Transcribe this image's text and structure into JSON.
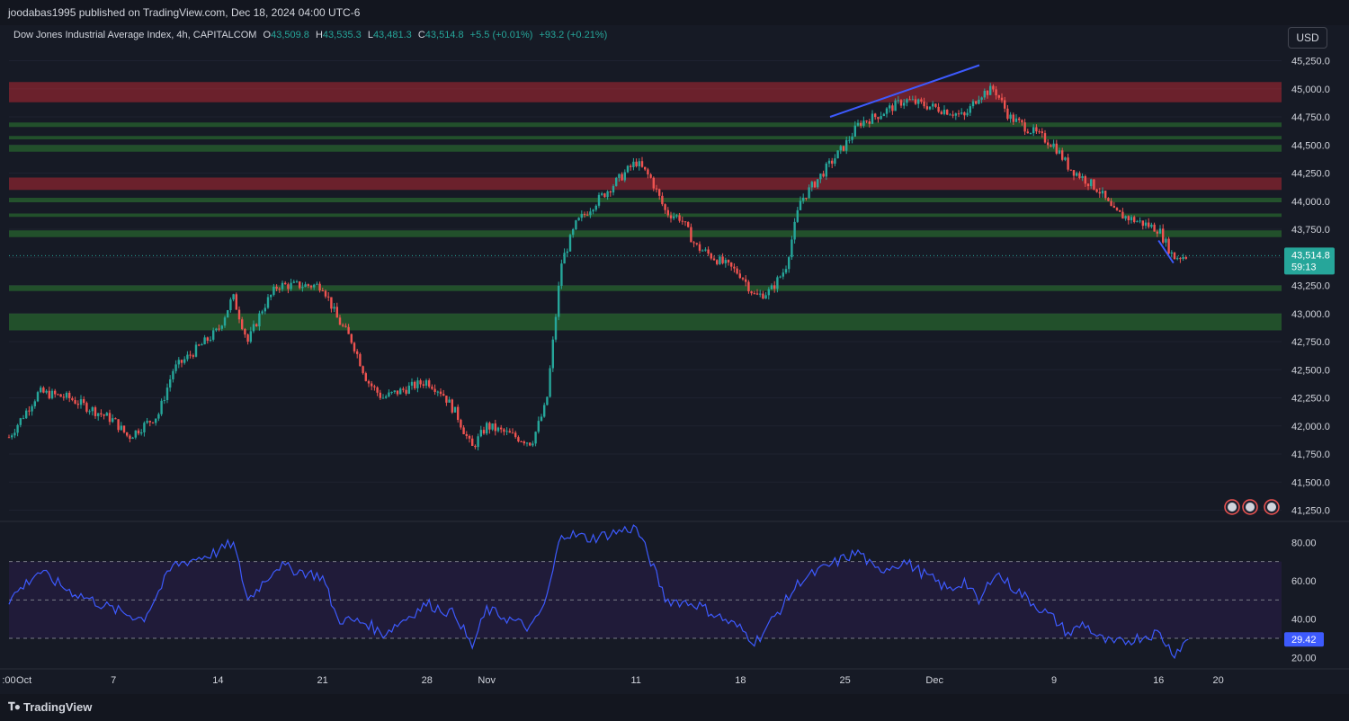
{
  "header": {
    "publisher_line": "joodabas1995 published on TradingView.com, Dec 18, 2024 04:00 UTC-6"
  },
  "legend": {
    "symbol": "Dow Jones Industrial Average Index, 4h, CAPITALCOM",
    "open_label": "O",
    "open": "43,509.8",
    "high_label": "H",
    "high": "43,535.3",
    "low_label": "L",
    "low": "43,481.3",
    "close_label": "C",
    "close": "43,514.8",
    "change": "+5.5 (+0.01%)",
    "change2": "+93.2 (+0.21%)"
  },
  "currency_button": "USD",
  "price_tag": {
    "value": "43,514.8",
    "countdown": "59:13"
  },
  "rsi_tag": "29.42",
  "footer": {
    "brand": "TradingView"
  },
  "colors": {
    "background": "#161a25",
    "up": "#26a69a",
    "down": "#ef5350",
    "supply_zone": "#b22833",
    "demand_zone": "#2e7d32",
    "trendline": "#3d5afe",
    "rsi_line": "#3d5afe",
    "rsi_band": "#2a1e4a"
  },
  "chart_data": [
    {
      "type": "candlestick",
      "symbol": "Dow Jones Industrial Average Index",
      "timeframe": "4h",
      "ylim": [
        41150,
        45350
      ],
      "y_ticks": [
        "45,250.0",
        "45,000.0",
        "44,750.0",
        "44,500.0",
        "44,250.0",
        "44,000.0",
        "43,750.0",
        "43,500.0",
        "43,250.0",
        "43,000.0",
        "42,750.0",
        "42,500.0",
        "42,250.0",
        "42,000.0",
        "41,750.0",
        "41,500.0",
        "41,250.0"
      ],
      "x_ticks": [
        ":00",
        "Oct",
        "7",
        "14",
        "21",
        "28",
        "Nov",
        "11",
        "18",
        "25",
        "Dec",
        "9",
        "16",
        "20"
      ],
      "last_price": 43514.8,
      "approx_path": [
        {
          "date": "Sep 30",
          "price": 41900
        },
        {
          "date": "Oct 2",
          "price": 42300
        },
        {
          "date": "Oct 4",
          "price": 42250
        },
        {
          "date": "Oct 7",
          "price": 42050
        },
        {
          "date": "Oct 8",
          "price": 41900
        },
        {
          "date": "Oct 10",
          "price": 42100
        },
        {
          "date": "Oct 11",
          "price": 42500
        },
        {
          "date": "Oct 14",
          "price": 42850
        },
        {
          "date": "Oct 15",
          "price": 43150
        },
        {
          "date": "Oct 16",
          "price": 42750
        },
        {
          "date": "Oct 17",
          "price": 43050
        },
        {
          "date": "Oct 18",
          "price": 43250
        },
        {
          "date": "Oct 21",
          "price": 43250
        },
        {
          "date": "Oct 22",
          "price": 42950
        },
        {
          "date": "Oct 23",
          "price": 42750
        },
        {
          "date": "Oct 24",
          "price": 42400
        },
        {
          "date": "Oct 25",
          "price": 42250
        },
        {
          "date": "Oct 28",
          "price": 42400
        },
        {
          "date": "Oct 29",
          "price": 42300
        },
        {
          "date": "Oct 30",
          "price": 42100
        },
        {
          "date": "Oct 31",
          "price": 41800
        },
        {
          "date": "Nov 1",
          "price": 42000
        },
        {
          "date": "Nov 4",
          "price": 41850
        },
        {
          "date": "Nov 5",
          "price": 42200
        },
        {
          "date": "Nov 6",
          "price": 43450
        },
        {
          "date": "Nov 7",
          "price": 43800
        },
        {
          "date": "Nov 8",
          "price": 43950
        },
        {
          "date": "Nov 11",
          "price": 44350
        },
        {
          "date": "Nov 12",
          "price": 44200
        },
        {
          "date": "Nov 13",
          "price": 43900
        },
        {
          "date": "Nov 14",
          "price": 43850
        },
        {
          "date": "Nov 15",
          "price": 43600
        },
        {
          "date": "Nov 18",
          "price": 43350
        },
        {
          "date": "Nov 19",
          "price": 43150
        },
        {
          "date": "Nov 20",
          "price": 43200
        },
        {
          "date": "Nov 21",
          "price": 43400
        },
        {
          "date": "Nov 22",
          "price": 44000
        },
        {
          "date": "Nov 25",
          "price": 44500
        },
        {
          "date": "Nov 26",
          "price": 44700
        },
        {
          "date": "Nov 27",
          "price": 44750
        },
        {
          "date": "Nov 29",
          "price": 44900
        },
        {
          "date": "Dec 2",
          "price": 44800
        },
        {
          "date": "Dec 3",
          "price": 44750
        },
        {
          "date": "Dec 4",
          "price": 44950
        },
        {
          "date": "Dec 5",
          "price": 45000
        },
        {
          "date": "Dec 6",
          "price": 44750
        },
        {
          "date": "Dec 9",
          "price": 44500
        },
        {
          "date": "Dec 10",
          "price": 44300
        },
        {
          "date": "Dec 11",
          "price": 44200
        },
        {
          "date": "Dec 12",
          "price": 44100
        },
        {
          "date": "Dec 13",
          "price": 43900
        },
        {
          "date": "Dec 16",
          "price": 43750
        },
        {
          "date": "Dec 17",
          "price": 43500
        },
        {
          "date": "Dec 18",
          "price": 43514.8
        }
      ],
      "supply_zones": [
        [
          44880,
          45060
        ],
        [
          44100,
          44210
        ]
      ],
      "demand_zones": [
        [
          44660,
          44700
        ],
        [
          44550,
          44580
        ],
        [
          44440,
          44500
        ],
        [
          43990,
          44030
        ],
        [
          43860,
          43890
        ],
        [
          43680,
          43740
        ],
        [
          43200,
          43250
        ],
        [
          42850,
          43000
        ]
      ],
      "trendlines": [
        {
          "from": {
            "date": "Nov 24",
            "price": 44750
          },
          "to": {
            "date": "Dec 4",
            "price": 45210
          }
        },
        {
          "from": {
            "date": "Dec 16",
            "price": 43650
          },
          "to": {
            "date": "Dec 17",
            "price": 43450
          }
        }
      ]
    },
    {
      "type": "line",
      "name": "RSI",
      "ylim": [
        15,
        90
      ],
      "y_ticks": [
        "80.00",
        "60.00",
        "40.00",
        "20.00"
      ],
      "bands": [
        70,
        50,
        30
      ],
      "last_value": 29.42,
      "approx_values": [
        {
          "date": "Sep 30",
          "value": 50
        },
        {
          "date": "Oct 2",
          "value": 65
        },
        {
          "date": "Oct 4",
          "value": 55
        },
        {
          "date": "Oct 7",
          "value": 45
        },
        {
          "date": "Oct 9",
          "value": 40
        },
        {
          "date": "Oct 11",
          "value": 68
        },
        {
          "date": "Oct 14",
          "value": 75
        },
        {
          "date": "Oct 15",
          "value": 80
        },
        {
          "date": "Oct 16",
          "value": 50
        },
        {
          "date": "Oct 18",
          "value": 68
        },
        {
          "date": "Oct 21",
          "value": 62
        },
        {
          "date": "Oct 22",
          "value": 40
        },
        {
          "date": "Oct 24",
          "value": 38
        },
        {
          "date": "Oct 25",
          "value": 32
        },
        {
          "date": "Oct 28",
          "value": 48
        },
        {
          "date": "Oct 30",
          "value": 42
        },
        {
          "date": "Oct 31",
          "value": 25
        },
        {
          "date": "Nov 1",
          "value": 45
        },
        {
          "date": "Nov 4",
          "value": 35
        },
        {
          "date": "Nov 5",
          "value": 50
        },
        {
          "date": "Nov 6",
          "value": 85
        },
        {
          "date": "Nov 8",
          "value": 82
        },
        {
          "date": "Nov 11",
          "value": 88
        },
        {
          "date": "Nov 12",
          "value": 70
        },
        {
          "date": "Nov 13",
          "value": 50
        },
        {
          "date": "Nov 15",
          "value": 48
        },
        {
          "date": "Nov 18",
          "value": 35
        },
        {
          "date": "Nov 19",
          "value": 28
        },
        {
          "date": "Nov 20",
          "value": 38
        },
        {
          "date": "Nov 22",
          "value": 60
        },
        {
          "date": "Nov 25",
          "value": 72
        },
        {
          "date": "Nov 26",
          "value": 75
        },
        {
          "date": "Nov 27",
          "value": 65
        },
        {
          "date": "Nov 29",
          "value": 70
        },
        {
          "date": "Dec 2",
          "value": 55
        },
        {
          "date": "Dec 3",
          "value": 60
        },
        {
          "date": "Dec 4",
          "value": 48
        },
        {
          "date": "Dec 5",
          "value": 65
        },
        {
          "date": "Dec 6",
          "value": 58
        },
        {
          "date": "Dec 9",
          "value": 40
        },
        {
          "date": "Dec 10",
          "value": 32
        },
        {
          "date": "Dec 11",
          "value": 38
        },
        {
          "date": "Dec 12",
          "value": 30
        },
        {
          "date": "Dec 13",
          "value": 27
        },
        {
          "date": "Dec 16",
          "value": 33
        },
        {
          "date": "Dec 17",
          "value": 22
        },
        {
          "date": "Dec 18",
          "value": 29.42
        }
      ]
    }
  ]
}
